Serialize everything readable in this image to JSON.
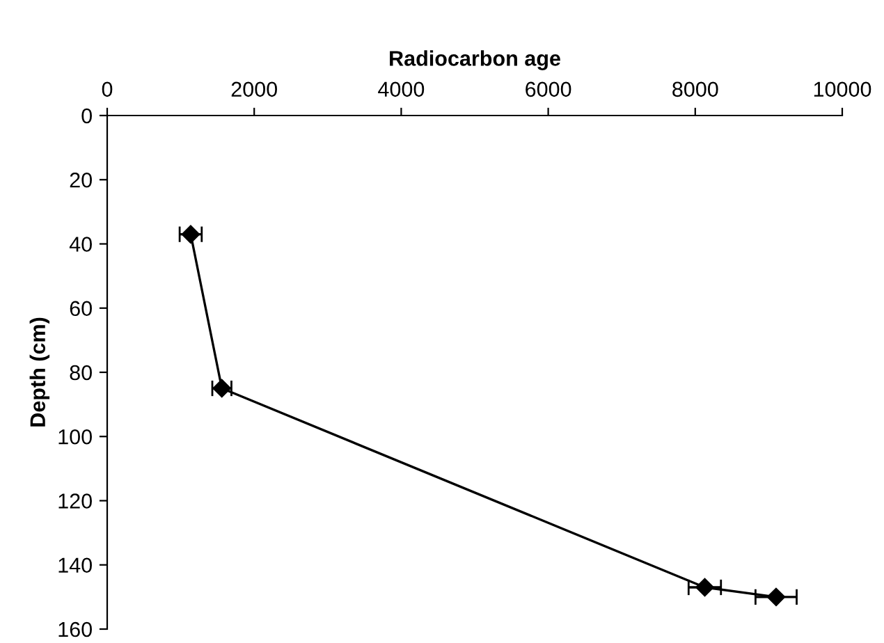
{
  "chart_data": {
    "type": "line",
    "xlabel": "Radiocarbon age",
    "ylabel": "Depth (cm)",
    "x": [
      1136,
      1560,
      8130,
      9100
    ],
    "series": [
      {
        "color": "#000000",
        "values": [
          37,
          85,
          147,
          150
        ],
        "xerrors": [
          150,
          130,
          220,
          280
        ]
      }
    ],
    "xlim": [
      0,
      10000
    ],
    "xticks": [
      0,
      2000,
      4000,
      6000,
      8000,
      10000
    ],
    "ylim": [
      160,
      0
    ],
    "yticks": [
      0,
      20,
      40,
      60,
      80,
      100,
      120,
      140,
      160
    ],
    "marker": "diamond",
    "line_style": "solid",
    "grid": false
  }
}
